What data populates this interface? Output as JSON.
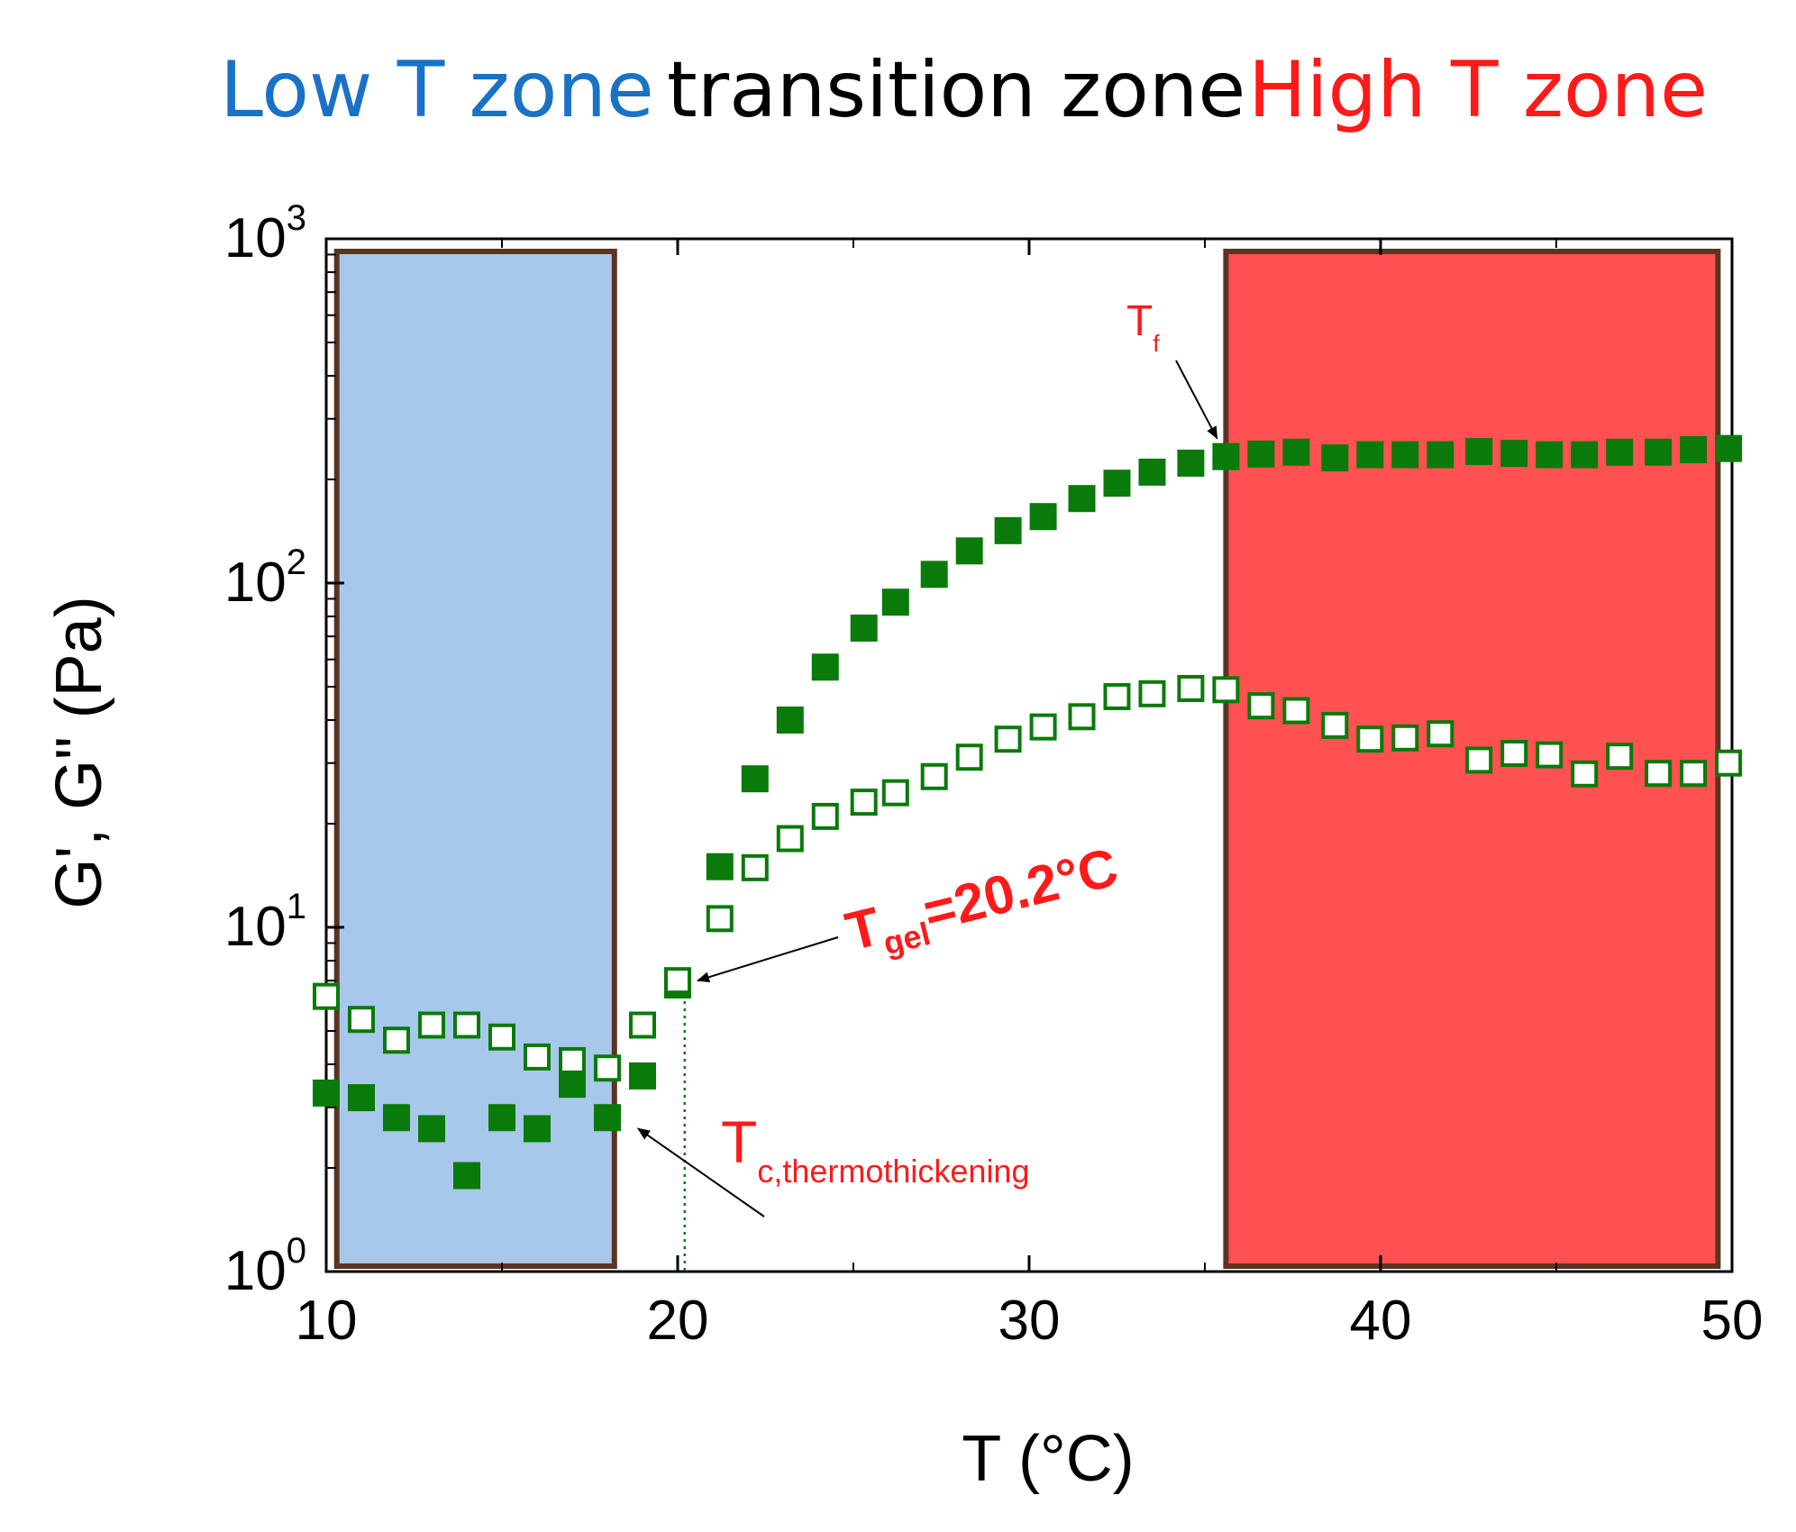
{
  "header": {
    "low_zone": "Low T zone",
    "transition_zone": "transition zone",
    "high_zone": "High T zone",
    "low_color": "#1a72c7",
    "transition_color": "#000000",
    "high_color": "#ff1a1a"
  },
  "chart_data": {
    "type": "scatter",
    "title": "",
    "xlabel": "T (°C)",
    "ylabel": "G', G\" (Pa)",
    "xlim": [
      10,
      50
    ],
    "ylim": [
      1,
      1000
    ],
    "yscale": "log",
    "x_ticks": [
      10,
      20,
      30,
      40,
      50
    ],
    "x_tick_labels": [
      "10",
      "20",
      "30",
      "40",
      "50"
    ],
    "y_ticks": [
      1,
      10,
      100,
      1000
    ],
    "y_tick_labels": [
      {
        "base": "10",
        "exp": "0"
      },
      {
        "base": "10",
        "exp": "1"
      },
      {
        "base": "10",
        "exp": "2"
      },
      {
        "base": "10",
        "exp": "3"
      }
    ],
    "zones": [
      {
        "name": "low-t-zone",
        "x_range": [
          10.3,
          18.2
        ],
        "fill": "#a7c8ea",
        "edge": "#5c3321"
      },
      {
        "name": "high-t-zone",
        "x_range": [
          35.6,
          49.6
        ],
        "fill": "#ff5151",
        "edge": "#5c3321"
      }
    ],
    "series": [
      {
        "name": "G'",
        "marker": "filled-square",
        "color": "#0a7a0a",
        "x": [
          10.0,
          11.0,
          12.0,
          13.0,
          14.0,
          15.0,
          16.0,
          17.0,
          18.0,
          19.0,
          20.0,
          21.2,
          22.2,
          23.2,
          24.2,
          25.3,
          26.2,
          27.3,
          28.3,
          29.4,
          30.4,
          31.5,
          32.5,
          33.5,
          34.6,
          35.6,
          36.6,
          37.6,
          38.7,
          39.7,
          40.7,
          41.7,
          42.8,
          43.8,
          44.8,
          45.8,
          46.8,
          47.9,
          48.9,
          49.9
        ],
        "values": [
          3.3,
          3.2,
          2.8,
          2.6,
          1.9,
          2.8,
          2.6,
          3.5,
          2.8,
          3.7,
          6.8,
          15.0,
          27.0,
          40.0,
          57.0,
          74.0,
          88.0,
          106.0,
          124.0,
          142.0,
          156.0,
          176.0,
          195.0,
          210.0,
          223.0,
          233.0,
          237.0,
          240.0,
          231.0,
          236.0,
          236.0,
          236.0,
          241.0,
          238.0,
          236.0,
          236.0,
          240.0,
          240.0,
          244.0,
          246.0
        ]
      },
      {
        "name": "G\"",
        "marker": "open-square",
        "color": "#0a7a0a",
        "x": [
          10.0,
          11.0,
          12.0,
          13.0,
          14.0,
          15.0,
          16.0,
          17.0,
          18.0,
          19.0,
          20.0,
          21.2,
          22.2,
          23.2,
          24.2,
          25.3,
          26.2,
          27.3,
          28.3,
          29.4,
          30.4,
          31.5,
          32.5,
          33.5,
          34.6,
          35.6,
          36.6,
          37.6,
          38.7,
          39.7,
          40.7,
          41.7,
          42.8,
          43.8,
          44.8,
          45.8,
          46.8,
          47.9,
          48.9,
          49.9
        ],
        "values": [
          6.3,
          5.4,
          4.7,
          5.2,
          5.2,
          4.8,
          4.2,
          4.1,
          3.9,
          5.2,
          7.0,
          10.6,
          14.9,
          18.1,
          21.0,
          23.1,
          24.6,
          27.4,
          31.2,
          35.2,
          38.2,
          40.9,
          46.8,
          47.7,
          49.4,
          49.0,
          44.0,
          42.6,
          38.6,
          35.2,
          35.5,
          36.5,
          30.6,
          32.0,
          31.7,
          27.9,
          31.4,
          28.0,
          28.0,
          30.0
        ]
      }
    ],
    "annotations": [
      {
        "name": "tgel",
        "text_main": "T",
        "text_sub": "gel",
        "text_value": "=20.2°C",
        "color": "#ff1a1a",
        "point": [
          20.0,
          7.0
        ]
      },
      {
        "name": "tc",
        "text_main": "T",
        "text_sub": "c,thermothickening",
        "color": "#ff1a1a",
        "point": [
          18.1,
          2.8
        ]
      },
      {
        "name": "tf",
        "text_main": "T",
        "text_sub": "f",
        "color": "#ff1a1a",
        "point": [
          35.4,
          233.0
        ]
      }
    ],
    "gel_line_x": 20.2
  }
}
